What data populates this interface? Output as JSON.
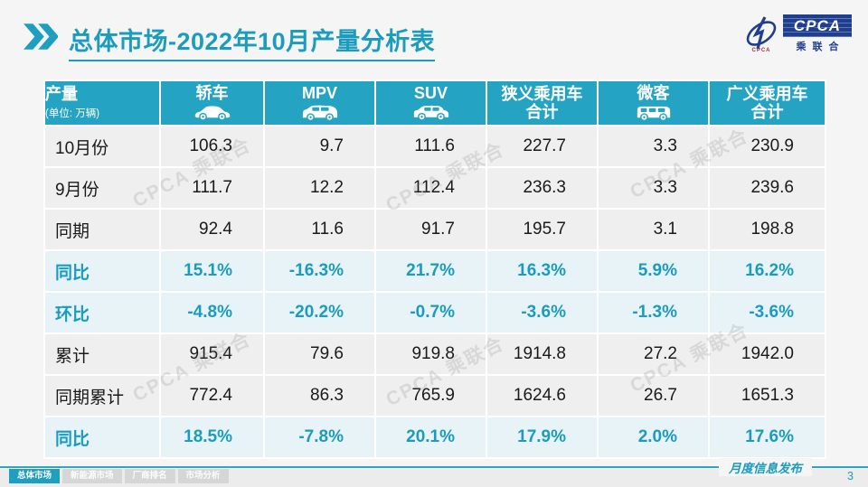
{
  "title": {
    "text": "总体市场-2022年10月产量分析表"
  },
  "logo": {
    "name": "CPCA",
    "subtitle": "乘联合",
    "swoosh_caption": "CPCA"
  },
  "watermark": {
    "text": "CPCA 乘联合"
  },
  "table": {
    "corner": {
      "label": "产量",
      "unit": "(单位: 万辆)"
    },
    "columns": [
      {
        "label": "轿车",
        "icon": "sedan-icon"
      },
      {
        "label": "MPV",
        "icon": "mpv-icon"
      },
      {
        "label": "SUV",
        "icon": "suv-icon"
      },
      {
        "label": "狭义乘用车\n合计"
      },
      {
        "label": "微客",
        "icon": "microvan-icon"
      },
      {
        "label": "广义乘用车\n合计"
      }
    ],
    "rows": [
      {
        "label": "10月份",
        "type": "normal",
        "values": [
          "106.3",
          "9.7",
          "111.6",
          "227.7",
          "3.3",
          "230.9"
        ]
      },
      {
        "label": "9月份",
        "type": "normal",
        "values": [
          "111.7",
          "12.2",
          "112.4",
          "236.3",
          "3.3",
          "239.6"
        ]
      },
      {
        "label": "同期",
        "type": "normal",
        "values": [
          "92.4",
          "11.6",
          "91.7",
          "195.7",
          "3.1",
          "198.8"
        ]
      },
      {
        "label": "同比",
        "type": "percent",
        "values": [
          "15.1%",
          "-16.3%",
          "21.7%",
          "16.3%",
          "5.9%",
          "16.2%"
        ]
      },
      {
        "label": "环比",
        "type": "percent",
        "values": [
          "-4.8%",
          "-20.2%",
          "-0.7%",
          "-3.6%",
          "-1.3%",
          "-3.6%"
        ]
      },
      {
        "label": "累计",
        "type": "normal",
        "values": [
          "915.4",
          "79.6",
          "919.8",
          "1914.8",
          "27.2",
          "1942.0"
        ]
      },
      {
        "label": "同期累计",
        "type": "normal",
        "values": [
          "772.4",
          "86.3",
          "765.9",
          "1624.6",
          "26.7",
          "1651.3"
        ]
      },
      {
        "label": "同比",
        "type": "percent",
        "values": [
          "18.5%",
          "-7.8%",
          "20.1%",
          "17.9%",
          "2.0%",
          "17.6%"
        ]
      }
    ]
  },
  "footer": {
    "tabs": [
      {
        "label": "总体市场",
        "active": true
      },
      {
        "label": "新能源市场",
        "active": false
      },
      {
        "label": "厂商排名",
        "active": false
      },
      {
        "label": "市场分析",
        "active": false
      }
    ],
    "publication": "月度信息发布",
    "page_number": "3"
  },
  "colors": {
    "accent": "#1B9CBD",
    "table_header_bg": "#25A3C3",
    "percent_row_bg": "#E8F3F8",
    "normal_row_bg": "#EFEFEF",
    "logo_navy": "#1F3E8E",
    "tab_active_bg": "#1E9FBF",
    "tab_inactive_bg": "#D6D6D6"
  }
}
